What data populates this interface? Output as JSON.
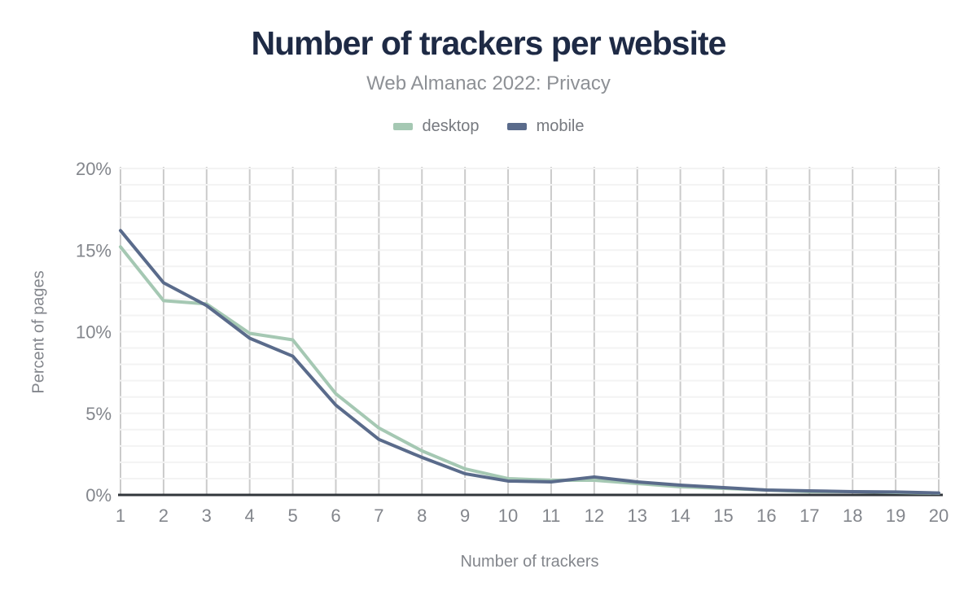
{
  "header": {
    "title": "Number of trackers per website",
    "subtitle": "Web Almanac 2022: Privacy"
  },
  "legend": {
    "items": [
      {
        "label": "desktop",
        "color": "#a5c8b3"
      },
      {
        "label": "mobile",
        "color": "#5a6b8b"
      }
    ]
  },
  "axes": {
    "x_title": "Number of trackers",
    "y_title": "Percent of pages",
    "x_tick_labels": [
      "1",
      "2",
      "3",
      "4",
      "5",
      "6",
      "7",
      "8",
      "9",
      "10",
      "11",
      "12",
      "13",
      "14",
      "15",
      "16",
      "17",
      "18",
      "19",
      "20"
    ],
    "y_tick_labels": [
      "0%",
      "5%",
      "10%",
      "15%",
      "20%"
    ]
  },
  "chart_data": {
    "type": "line",
    "title": "Number of trackers per website",
    "subtitle": "Web Almanac 2022: Privacy",
    "xlabel": "Number of trackers",
    "ylabel": "Percent of pages",
    "x": [
      1,
      2,
      3,
      4,
      5,
      6,
      7,
      8,
      9,
      10,
      11,
      12,
      13,
      14,
      15,
      16,
      17,
      18,
      19,
      20
    ],
    "xlim": [
      1,
      20
    ],
    "ylim": [
      0,
      20
    ],
    "y_major_step": 5,
    "y_minor_step": 1,
    "grid": "vertical lines at every x tick; light horizontal lines every 1%",
    "legend_position": "top-center",
    "series": [
      {
        "name": "desktop",
        "color": "#a5c8b3",
        "values": [
          15.2,
          11.9,
          11.7,
          9.9,
          9.5,
          6.2,
          4.1,
          2.7,
          1.6,
          1.0,
          0.9,
          0.9,
          0.7,
          0.5,
          0.4,
          0.3,
          0.2,
          0.2,
          0.15,
          0.1
        ]
      },
      {
        "name": "mobile",
        "color": "#5a6b8b",
        "values": [
          16.2,
          13.0,
          11.6,
          9.6,
          8.5,
          5.5,
          3.4,
          2.3,
          1.3,
          0.85,
          0.8,
          1.1,
          0.8,
          0.6,
          0.45,
          0.3,
          0.25,
          0.2,
          0.18,
          0.12
        ]
      }
    ]
  },
  "style": {
    "title_color": "#1e2a45",
    "subtitle_color": "#8d9095",
    "legend_label_color": "#76797f",
    "tick_label_color": "#83868c",
    "axis_title_color": "#83868c",
    "grid_vertical_color": "#cbcbcb",
    "grid_horizontal_color": "#f3f3f3",
    "axis_line_color": "#31363b",
    "background": "#ffffff"
  }
}
